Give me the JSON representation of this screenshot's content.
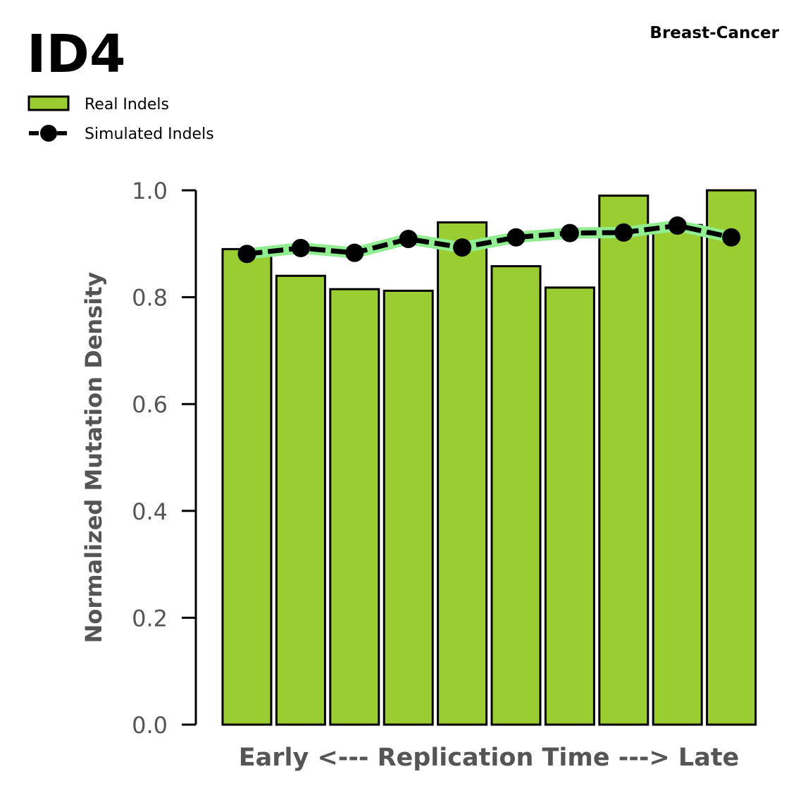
{
  "chart_data": {
    "type": "bar",
    "title": "ID4",
    "subtitle": "Breast-Cancer",
    "xlabel": "Early <--- Replication Time ---> Late",
    "ylabel": "Normalized Mutation Density",
    "ylim": [
      0,
      1.0
    ],
    "yticks": [
      "0.0",
      "0.2",
      "0.4",
      "0.6",
      "0.8",
      "1.0"
    ],
    "grid": false,
    "legend_position": "top-left",
    "bins": 10,
    "series": [
      {
        "name": "Real Indels",
        "kind": "bar",
        "color": "#9acd32",
        "values": [
          0.89,
          0.84,
          0.815,
          0.812,
          0.94,
          0.858,
          0.818,
          0.99,
          0.935,
          1.0
        ]
      },
      {
        "name": "Simulated Indels",
        "kind": "line",
        "color": "#000000",
        "band_color": "#90ee90",
        "values": [
          0.881,
          0.892,
          0.883,
          0.909,
          0.893,
          0.912,
          0.92,
          0.921,
          0.934,
          0.912
        ]
      }
    ]
  }
}
